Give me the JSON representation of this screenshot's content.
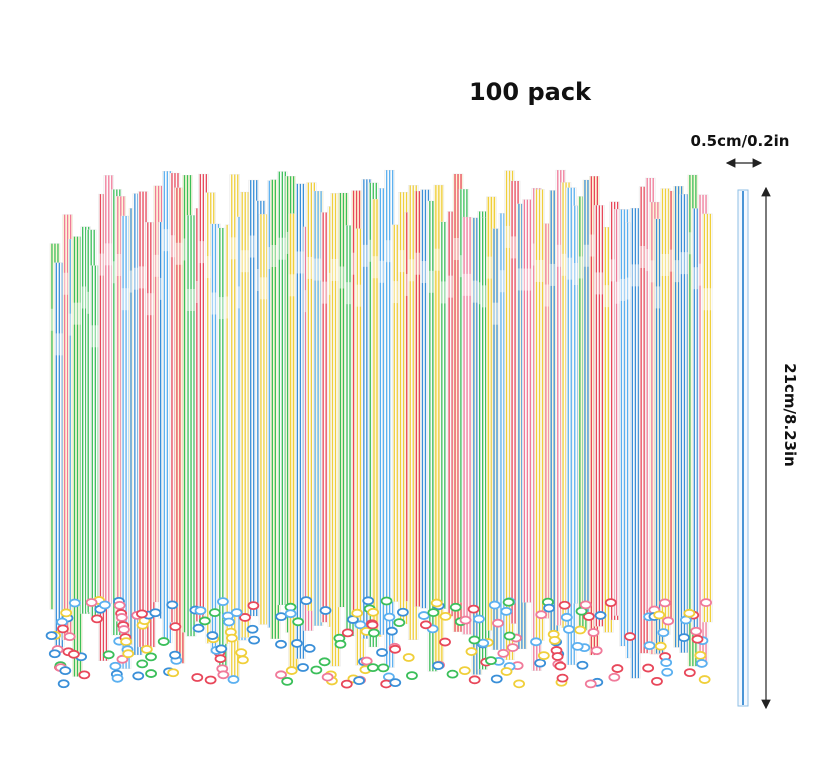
{
  "title": "100 pack",
  "width_label": "0.5cm/0.2in",
  "length_label": "21cm/8.23in"
}
